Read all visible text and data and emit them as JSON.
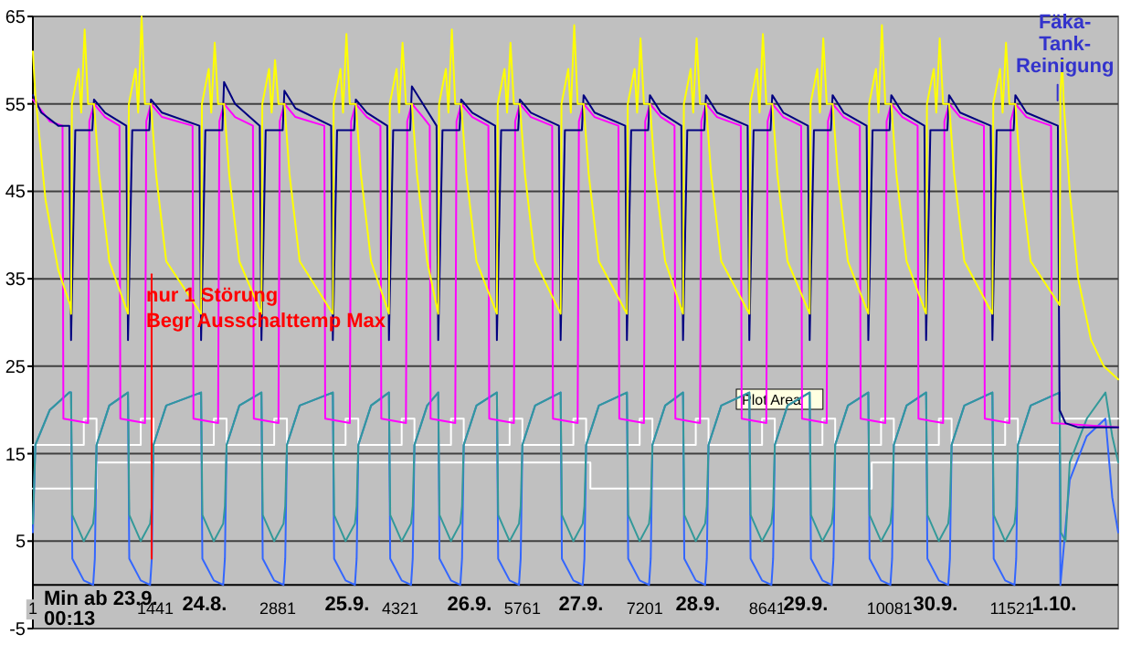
{
  "chart_data": {
    "type": "line",
    "xlabel": "Min ab 23.9.\n00:13",
    "annotations": [
      "Plot Area",
      "24.8.",
      "25.9.",
      "26.9.",
      "27.9.",
      "28.9.",
      "29.9.",
      "30.9.",
      "1.10."
    ],
    "xlim": [
      1,
      12770
    ],
    "xticks": [
      1,
      1441,
      2881,
      4321,
      5761,
      7201,
      8641,
      10081,
      11521
    ],
    "ylim": [
      -5,
      65
    ],
    "yticks": [
      -5,
      5,
      15,
      25,
      35,
      45,
      55,
      65
    ],
    "grid": "y",
    "series": [
      {
        "type": "step",
        "color": "#ffffff",
        "x": [
          1,
          600,
          750,
          1270,
          1420,
          2130,
          2280,
          2840,
          2990,
          3680,
          3830,
          4340,
          4490,
          4920,
          5070,
          5610,
          5760,
          6360,
          6510,
          7140,
          7290,
          7800,
          7950,
          8580,
          8730,
          9290,
          9440,
          9980,
          10130,
          10660,
          10810,
          11440,
          11590,
          12080,
          12770
        ],
        "values": [
          16,
          19,
          16,
          19,
          16,
          19,
          16,
          19,
          16,
          19,
          16,
          19,
          16,
          19,
          16,
          19,
          16,
          19,
          16,
          19,
          16,
          19,
          16,
          19,
          16,
          19,
          16,
          19,
          16,
          19,
          16,
          19,
          16,
          19,
          19
        ]
      },
      {
        "type": "step",
        "color": "#ffffff",
        "x": [
          1,
          750,
          6560,
          9870,
          12770
        ],
        "values": [
          11,
          14,
          11,
          14,
          14
        ]
      },
      {
        "color": "#3366ff",
        "x": [
          1,
          30,
          200,
          430,
          450,
          465,
          600,
          710,
          730,
          750,
          900,
          1120,
          1135,
          1270,
          1380,
          1400,
          1420,
          1570,
          1980,
          1995,
          2130,
          2240,
          2260,
          2280,
          2430,
          2690,
          2705,
          2840,
          2950,
          2970,
          2990,
          3140,
          3530,
          3545,
          3680,
          3790,
          3810,
          3830,
          3980,
          4190,
          4205,
          4340,
          4450,
          4470,
          4490,
          4640,
          4770,
          4785,
          4920,
          5030,
          5050,
          5070,
          5220,
          5460,
          5475,
          5610,
          5720,
          5740,
          5760,
          5910,
          6210,
          6225,
          6360,
          6470,
          6490,
          6510,
          6660,
          6990,
          7005,
          7140,
          7250,
          7270,
          7290,
          7440,
          7650,
          7665,
          7800,
          7910,
          7930,
          7950,
          8100,
          8430,
          8445,
          8580,
          8690,
          8710,
          8730,
          8880,
          9140,
          9155,
          9290,
          9400,
          9420,
          9440,
          9590,
          9830,
          9845,
          9980,
          10090,
          10110,
          10130,
          10280,
          10510,
          10525,
          10660,
          10770,
          10790,
          10810,
          10960,
          11290,
          11305,
          11440,
          11550,
          11570,
          11590,
          11740,
          12080,
          12090,
          12200,
          12400,
          12620,
          12700,
          12770
        ],
        "values": [
          6,
          16,
          20,
          22,
          22,
          3,
          0.5,
          0,
          3,
          16,
          20.5,
          22,
          3,
          0.5,
          0,
          3,
          16,
          20.5,
          22,
          3,
          0.5,
          0,
          3,
          16,
          20.5,
          22,
          3,
          0.5,
          0,
          3,
          16,
          20.5,
          22,
          3,
          0.5,
          0,
          3,
          16,
          20.5,
          22,
          3,
          0.5,
          0,
          3,
          16,
          20.5,
          22,
          3,
          0.5,
          0,
          3,
          16,
          20.5,
          22,
          3,
          0.5,
          0,
          3,
          16,
          20.5,
          22,
          3,
          0.5,
          0,
          3,
          16,
          20.5,
          22,
          3,
          0.5,
          0,
          3,
          16,
          20.5,
          22,
          3,
          0.5,
          0,
          3,
          16,
          20.5,
          22,
          3,
          0.5,
          0,
          3,
          16,
          20.5,
          22,
          3,
          0.5,
          0,
          3,
          16,
          20.5,
          22,
          3,
          0.5,
          0,
          3,
          16,
          20.5,
          22,
          3,
          0.5,
          0,
          3,
          16,
          20.5,
          22,
          3,
          0.5,
          0,
          3,
          16,
          20.5,
          22,
          0,
          12,
          17,
          19,
          10,
          6
        ]
      },
      {
        "color": "#339999",
        "x": [
          1,
          30,
          200,
          430,
          450,
          465,
          600,
          710,
          730,
          750,
          900,
          1120,
          1135,
          1270,
          1380,
          1400,
          1420,
          1570,
          1980,
          1995,
          2130,
          2240,
          2260,
          2280,
          2430,
          2690,
          2705,
          2840,
          2950,
          2970,
          2990,
          3140,
          3530,
          3545,
          3680,
          3790,
          3810,
          3830,
          3980,
          4190,
          4205,
          4340,
          4450,
          4470,
          4490,
          4640,
          4770,
          4785,
          4920,
          5030,
          5050,
          5070,
          5220,
          5460,
          5475,
          5610,
          5720,
          5740,
          5760,
          5910,
          6210,
          6225,
          6360,
          6470,
          6490,
          6510,
          6660,
          6990,
          7005,
          7140,
          7250,
          7270,
          7290,
          7440,
          7650,
          7665,
          7800,
          7910,
          7930,
          7950,
          8100,
          8430,
          8445,
          8580,
          8690,
          8710,
          8730,
          8880,
          9140,
          9155,
          9290,
          9400,
          9420,
          9440,
          9590,
          9830,
          9845,
          9980,
          10090,
          10110,
          10130,
          10280,
          10510,
          10525,
          10660,
          10770,
          10790,
          10810,
          10960,
          11290,
          11305,
          11440,
          11550,
          11570,
          11590,
          11740,
          12080,
          12095,
          12150,
          12200,
          12400,
          12620,
          12700,
          12770
        ],
        "values": [
          7,
          16,
          20,
          22,
          22,
          8,
          5,
          7,
          9,
          16,
          20.5,
          22,
          8,
          5,
          7,
          9,
          16,
          20.5,
          22,
          8,
          5,
          7,
          9,
          16,
          20.5,
          22,
          8,
          5,
          7,
          9,
          16,
          20.5,
          22,
          8,
          5,
          7,
          9,
          16,
          20.5,
          22,
          8,
          5,
          7,
          9,
          16,
          20.5,
          22,
          8,
          5,
          7,
          9,
          16,
          20.5,
          22,
          8,
          5,
          7,
          9,
          16,
          20.5,
          22,
          8,
          5,
          7,
          9,
          16,
          20.5,
          22,
          8,
          5,
          7,
          9,
          16,
          20.5,
          22,
          8,
          5,
          7,
          9,
          16,
          20.5,
          22,
          8,
          5,
          7,
          9,
          16,
          20.5,
          22,
          8,
          5,
          7,
          9,
          16,
          20.5,
          22,
          8,
          5,
          7,
          9,
          16,
          20.5,
          22,
          8,
          5,
          7,
          9,
          16,
          20.5,
          22,
          8,
          5,
          7,
          9,
          16,
          20.5,
          22,
          6,
          5,
          14,
          19,
          22,
          17,
          14
        ]
      },
      {
        "color": "#ff00ff",
        "x": [
          1,
          200,
          350,
          360,
          650,
          665,
          720,
          850,
          1020,
          1030,
          1320,
          1335,
          1390,
          1520,
          1880,
          1890,
          2180,
          2195,
          2250,
          2380,
          2590,
          2600,
          2890,
          2905,
          2960,
          3090,
          3430,
          3440,
          3730,
          3745,
          3800,
          3930,
          4090,
          4100,
          4390,
          4405,
          4460,
          4590,
          4670,
          4680,
          4970,
          4985,
          5040,
          5170,
          5360,
          5370,
          5660,
          5675,
          5730,
          5860,
          6110,
          6120,
          6410,
          6425,
          6480,
          6610,
          6890,
          6900,
          7190,
          7205,
          7260,
          7390,
          7550,
          7560,
          7850,
          7865,
          7920,
          8050,
          8330,
          8340,
          8630,
          8645,
          8700,
          8830,
          9040,
          9050,
          9340,
          9355,
          9410,
          9540,
          9730,
          9740,
          10030,
          10045,
          10100,
          10230,
          10410,
          10420,
          10710,
          10725,
          10780,
          10910,
          11190,
          11200,
          11490,
          11505,
          11560,
          11690,
          11980,
          11990,
          12770
        ],
        "values": [
          55.5,
          53,
          52.5,
          19,
          18.5,
          53,
          55,
          53.5,
          52.5,
          19,
          18.5,
          53,
          55,
          53.5,
          52.5,
          19,
          18.5,
          53,
          55,
          53.5,
          52.5,
          19,
          18.5,
          53,
          55,
          53.5,
          52.5,
          19,
          18.5,
          53,
          55,
          53.5,
          52.5,
          19,
          18.5,
          53,
          55,
          53.5,
          52.5,
          19,
          18.5,
          53,
          55,
          53.5,
          52.5,
          19,
          18.5,
          53,
          55,
          53.5,
          52.5,
          19,
          18.5,
          53,
          55,
          53.5,
          52.5,
          19,
          18.5,
          53,
          55,
          53.5,
          52.5,
          19,
          18.5,
          53,
          55,
          53.5,
          52.5,
          19,
          18.5,
          53,
          55,
          53.5,
          52.5,
          19,
          18.5,
          53,
          55,
          53.5,
          52.5,
          19,
          18.5,
          53,
          55,
          53.5,
          52.5,
          19,
          18.5,
          53,
          55,
          53.5,
          52.5,
          19,
          18.5,
          53,
          55,
          53.5,
          52.5,
          18.5,
          18
        ]
      },
      {
        "color": "#000080",
        "x": [
          1,
          100,
          300,
          430,
          450,
          500,
          700,
          720,
          850,
          1100,
          1120,
          1170,
          1370,
          1390,
          1520,
          1960,
          1980,
          2030,
          2230,
          2250,
          2380,
          2670,
          2690,
          2740,
          2940,
          2960,
          3090,
          3510,
          3530,
          3580,
          3780,
          3800,
          3930,
          4170,
          4190,
          4240,
          4440,
          4460,
          4590,
          4750,
          4770,
          4820,
          5020,
          5040,
          5170,
          5440,
          5460,
          5510,
          5710,
          5730,
          5860,
          6190,
          6210,
          6260,
          6460,
          6480,
          6610,
          6970,
          6990,
          7040,
          7240,
          7260,
          7390,
          7630,
          7650,
          7700,
          7900,
          7920,
          8050,
          8410,
          8430,
          8480,
          8680,
          8700,
          8830,
          9120,
          9140,
          9190,
          9390,
          9410,
          9540,
          9810,
          9830,
          9880,
          10080,
          10100,
          10230,
          10490,
          10510,
          10560,
          10760,
          10780,
          10910,
          11270,
          11290,
          11340,
          11540,
          11560,
          11690,
          12060,
          12080,
          12150,
          12300,
          12770
        ],
        "values": [
          56,
          54,
          52.5,
          52.5,
          28,
          52,
          52,
          55.5,
          54,
          52.5,
          28,
          52,
          52,
          55.5,
          54,
          52.5,
          28,
          52,
          52,
          57.5,
          55,
          52.5,
          28,
          52,
          52,
          56.5,
          54.5,
          52.5,
          28,
          52,
          52,
          55.5,
          54,
          52.5,
          28,
          52,
          52,
          57,
          55,
          52.5,
          28,
          52,
          52,
          55.5,
          54,
          52.5,
          28,
          52,
          52,
          55.5,
          54,
          52.5,
          28,
          52,
          52,
          56,
          54,
          52.5,
          28,
          52,
          52,
          56,
          54,
          52.5,
          28,
          52,
          52,
          56,
          54,
          52.5,
          28,
          52,
          52,
          56,
          54,
          52.5,
          28,
          52,
          52,
          56,
          54,
          52.5,
          28,
          52,
          52,
          56,
          54,
          52.5,
          28,
          52,
          52,
          56,
          54,
          52.5,
          28,
          52,
          52,
          56,
          54,
          52.5,
          20,
          18.5,
          18,
          18
        ]
      },
      {
        "color": "#ffff00",
        "x": [
          1,
          30,
          150,
          300,
          440,
          450,
          460,
          540,
          570,
          610,
          650,
          720,
          780,
          900,
          1120,
          1130,
          1210,
          1240,
          1280,
          1320,
          1390,
          1450,
          1570,
          1980,
          1990,
          2070,
          2100,
          2140,
          2180,
          2250,
          2310,
          2430,
          2690,
          2700,
          2780,
          2810,
          2850,
          2890,
          2960,
          3020,
          3140,
          3530,
          3540,
          3620,
          3650,
          3690,
          3730,
          3800,
          3860,
          3980,
          4190,
          4200,
          4280,
          4310,
          4350,
          4390,
          4460,
          4520,
          4640,
          4770,
          4780,
          4860,
          4890,
          4930,
          4970,
          5040,
          5100,
          5220,
          5460,
          5470,
          5550,
          5580,
          5620,
          5660,
          5730,
          5790,
          5910,
          6210,
          6220,
          6300,
          6330,
          6370,
          6410,
          6480,
          6540,
          6660,
          6990,
          7000,
          7080,
          7110,
          7150,
          7190,
          7260,
          7320,
          7440,
          7650,
          7660,
          7740,
          7770,
          7810,
          7850,
          7920,
          7980,
          8100,
          8430,
          8440,
          8520,
          8550,
          8590,
          8630,
          8700,
          8760,
          8880,
          9140,
          9150,
          9230,
          9260,
          9300,
          9340,
          9410,
          9470,
          9590,
          9830,
          9840,
          9920,
          9950,
          9990,
          10030,
          10100,
          10160,
          10280,
          10510,
          10520,
          10600,
          10630,
          10670,
          10710,
          10780,
          10840,
          10960,
          11290,
          11300,
          11380,
          11410,
          11450,
          11490,
          11560,
          11620,
          11740,
          12080,
          12090,
          12110,
          12130,
          12200,
          12300,
          12450,
          12600,
          12770
        ],
        "values": [
          61,
          56,
          44,
          36,
          32,
          31,
          55,
          59,
          54,
          63.5,
          55,
          55,
          47,
          37,
          31,
          55,
          59,
          54,
          65,
          55,
          55,
          47,
          37,
          31,
          55,
          59,
          54,
          62,
          55,
          55,
          47,
          37,
          31,
          55,
          59,
          54,
          60,
          55,
          55,
          47,
          37,
          31,
          55,
          59,
          54,
          63,
          55,
          55,
          47,
          37,
          31,
          55,
          59,
          54,
          62,
          55,
          55,
          47,
          37,
          31,
          55,
          59,
          54,
          63.5,
          55,
          55,
          47,
          37,
          31,
          55,
          59,
          54,
          62,
          55,
          55,
          47,
          37,
          31,
          55,
          59,
          54,
          64,
          55,
          55,
          47,
          37,
          31,
          55,
          59,
          54,
          62.5,
          55,
          55,
          47,
          37,
          31,
          55,
          59,
          54,
          62.5,
          55,
          55,
          47,
          37,
          31,
          55,
          59,
          54,
          63,
          55,
          55,
          47,
          37,
          31,
          55,
          59,
          54,
          62.5,
          55,
          55,
          47,
          37,
          31,
          55,
          59,
          54,
          64,
          55,
          55,
          47,
          37,
          31,
          55,
          59,
          54,
          62.5,
          55,
          55,
          47,
          37,
          31,
          55,
          59,
          54,
          62,
          55,
          55,
          47,
          37,
          32,
          56,
          60,
          55,
          45,
          35,
          28,
          25,
          23.5
        ]
      },
      {
        "name": "nur 1 Störung\nBegr Ausschalttemp Max",
        "color": "#ff0000",
        "x": [
          1398,
          1398
        ],
        "values": [
          35.5,
          3
        ]
      },
      {
        "name": "Fäka-\nTank-\nReinigung",
        "color": "#3333cc",
        "x": [
          12057,
          12057
        ],
        "values": [
          57.2,
          55.4
        ]
      }
    ]
  }
}
